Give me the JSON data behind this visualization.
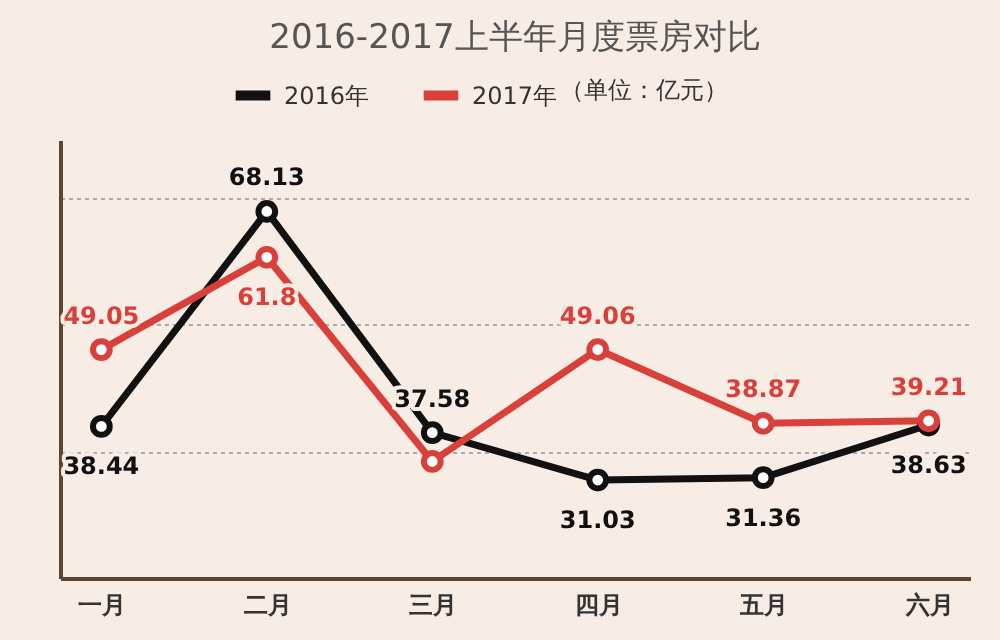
{
  "chart_data": {
    "type": "line",
    "title": "2016-2017上半年月度票房对比",
    "categories": [
      "一月",
      "二月",
      "三月",
      "四月",
      "五月",
      "六月"
    ],
    "series": [
      {
        "name": "2016年",
        "color": "#111111",
        "values": [
          38.44,
          68.13,
          37.58,
          31.03,
          31.36,
          38.63
        ],
        "value_labels": [
          "38.44",
          "68.13",
          "37.58",
          "31.03",
          "31.36",
          "38.63"
        ]
      },
      {
        "name": "2017年",
        "color": "#d9403a",
        "values": [
          49.05,
          61.8,
          33.6,
          49.06,
          38.87,
          39.21
        ],
        "value_labels": [
          "49.05",
          "61.8",
          null,
          "49.06",
          "38.87",
          "39.21"
        ]
      }
    ],
    "annotations": [
      "（单位：亿元）"
    ],
    "ylim": [
      17.5,
      78
    ],
    "yticks": [
      {
        "value": 35,
        "label": null
      },
      {
        "value": 52.5,
        "label": null
      },
      {
        "value": 70,
        "label": null
      }
    ],
    "tick_labels": "x",
    "grid": "y",
    "legend": "top",
    "marker": "circle",
    "line_style": "solid"
  }
}
